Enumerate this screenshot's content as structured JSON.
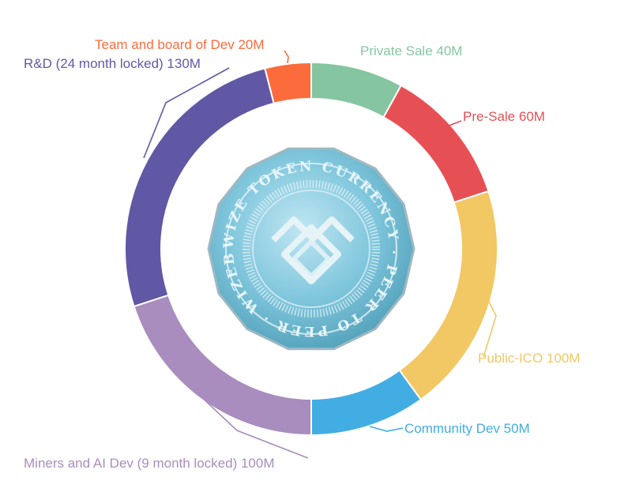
{
  "chart_data": {
    "type": "pie",
    "donut": true,
    "legend": "outside labels with leader lines",
    "slices": [
      {
        "label": "Private Sale 40M",
        "value": 40,
        "color": "#85c5a1"
      },
      {
        "label": "Pre-Sale 60M",
        "value": 60,
        "color": "#e65055"
      },
      {
        "label": "Public-ICO 100M",
        "value": 100,
        "color": "#f2c865"
      },
      {
        "label": "Community Dev 50M",
        "value": 50,
        "color": "#42ade3"
      },
      {
        "label": "Miners and AI Dev (9 month locked) 100M",
        "value": 100,
        "color": "#a88dbe"
      },
      {
        "label": "R&D (24 month locked) 130M",
        "value": 130,
        "color": "#6058a5"
      },
      {
        "label": "Team and board of Dev 20M",
        "value": 20,
        "color": "#fb6b3c"
      }
    ]
  },
  "coin": {
    "rim_text": "WIZE TOKEN CURRENCY · PEER TO PEER · WIZEBIT ·",
    "logo": "wize-logo-icon"
  }
}
